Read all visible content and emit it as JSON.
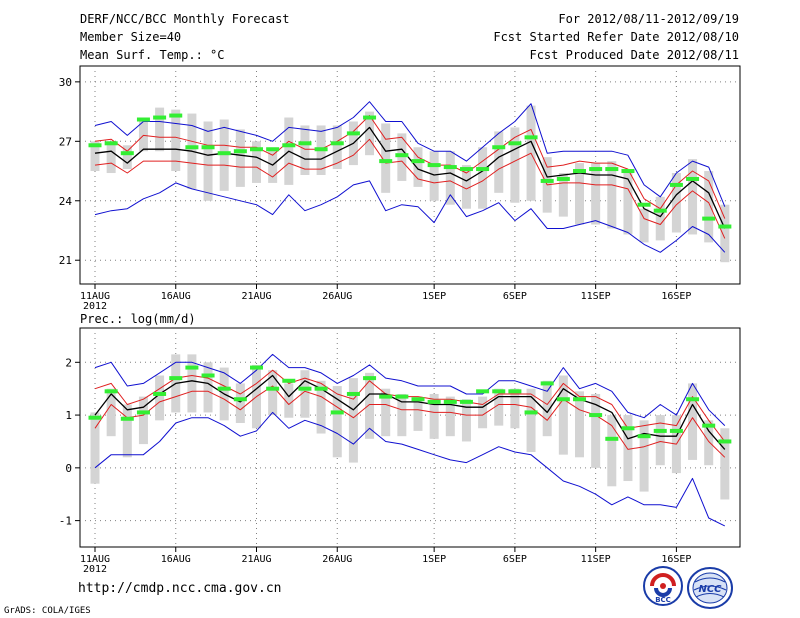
{
  "header": {
    "title": "DERF/NCC/BCC Monthly Forecast",
    "member_size": "Member Size=40",
    "variable": "Mean Surf. Temp.: °C",
    "period": "For 2012/08/11-2012/09/19",
    "started": "Fcst Started Refer Date 2012/08/10",
    "produced": "Fcst Produced Date 2012/08/11"
  },
  "footer": {
    "url": "http://cmdp.ncc.cma.gov.cn",
    "credit": "GrADS: COLA/IGES",
    "logo_bcc": "BCC",
    "logo_ncc": "NCC"
  },
  "colors": {
    "observed_green": "#33ee33",
    "box_gray": "#d4d4d4",
    "mean_black": "#000000",
    "inner_red": "#e02020",
    "outer_blue": "#1010d0",
    "grid": "#808080"
  },
  "chart_data": [
    {
      "type": "line",
      "title": "Mean Surf. Temp.: °C",
      "ylim": [
        19.8,
        30.8
      ],
      "yticks": [
        21,
        24,
        27,
        30
      ],
      "ytick_labels": [
        "21",
        "24",
        "27",
        "30"
      ],
      "xtick_days": [
        0,
        5,
        10,
        15,
        21,
        26,
        31,
        36
      ],
      "xtick_labels": [
        "11AUG",
        "16AUG",
        "21AUG",
        "26AUG",
        "1SEP",
        "6SEP",
        "11SEP",
        "16SEP"
      ],
      "year_label": "2012",
      "grid": true,
      "days": [
        0,
        1,
        2,
        3,
        4,
        5,
        6,
        7,
        8,
        9,
        10,
        11,
        12,
        13,
        14,
        15,
        16,
        17,
        18,
        19,
        20,
        21,
        22,
        23,
        24,
        25,
        26,
        27,
        28,
        29,
        30,
        31,
        32,
        33,
        34,
        35,
        36,
        37,
        38,
        39
      ],
      "series": [
        {
          "name": "max",
          "values": [
            27.8,
            28.0,
            27.3,
            28.0,
            28.0,
            27.9,
            27.8,
            27.5,
            27.7,
            27.5,
            27.3,
            27.0,
            27.7,
            27.6,
            27.5,
            27.7,
            28.2,
            29.0,
            28.0,
            28.0,
            26.9,
            26.5,
            26.5,
            26.0,
            26.7,
            27.4,
            28.0,
            28.9,
            26.4,
            26.5,
            26.5,
            26.5,
            26.5,
            26.3,
            24.8,
            24.2,
            25.4,
            26.0,
            25.7,
            23.7
          ]
        },
        {
          "name": "upper",
          "values": [
            27.0,
            27.1,
            26.5,
            27.3,
            27.2,
            27.2,
            27.0,
            26.8,
            26.8,
            26.7,
            26.7,
            26.3,
            27.0,
            26.6,
            26.6,
            27.0,
            27.5,
            28.3,
            27.1,
            27.2,
            26.2,
            25.8,
            25.8,
            25.4,
            26.0,
            26.6,
            27.2,
            27.6,
            25.7,
            25.8,
            26.0,
            25.9,
            25.9,
            25.6,
            24.1,
            23.6,
            24.8,
            25.5,
            25.0,
            23.1
          ]
        },
        {
          "name": "mean",
          "values": [
            26.4,
            26.5,
            25.9,
            26.6,
            26.6,
            26.6,
            26.5,
            26.3,
            26.4,
            26.3,
            26.2,
            25.8,
            26.5,
            26.1,
            26.1,
            26.5,
            26.9,
            27.7,
            26.5,
            26.6,
            25.6,
            25.3,
            25.4,
            25.0,
            25.5,
            26.2,
            26.6,
            27.0,
            25.2,
            25.3,
            25.4,
            25.3,
            25.3,
            25.1,
            23.6,
            23.2,
            24.3,
            25.0,
            24.4,
            22.6
          ]
        },
        {
          "name": "lower",
          "values": [
            25.8,
            25.9,
            25.4,
            26.0,
            26.0,
            26.0,
            25.9,
            25.8,
            25.8,
            25.7,
            25.7,
            25.2,
            25.9,
            25.6,
            25.6,
            25.9,
            26.3,
            27.1,
            25.9,
            26.0,
            25.1,
            24.9,
            25.0,
            24.6,
            25.0,
            25.6,
            26.0,
            26.4,
            24.8,
            24.9,
            24.9,
            24.8,
            24.8,
            24.6,
            23.1,
            22.8,
            23.8,
            24.5,
            23.9,
            22.1
          ]
        },
        {
          "name": "min",
          "values": [
            23.3,
            23.5,
            23.6,
            24.1,
            24.4,
            24.9,
            24.6,
            24.4,
            24.2,
            24.0,
            23.8,
            23.3,
            24.3,
            23.5,
            23.8,
            24.2,
            24.8,
            25.0,
            23.5,
            23.8,
            23.7,
            22.9,
            24.3,
            23.2,
            23.5,
            23.9,
            23.0,
            23.6,
            22.6,
            22.6,
            22.8,
            23.0,
            22.7,
            22.4,
            21.8,
            21.4,
            22.0,
            22.7,
            22.3,
            21.4
          ]
        },
        {
          "name": "box_top",
          "values": [
            27.0,
            27.0,
            26.8,
            28.2,
            28.7,
            28.6,
            28.4,
            28.0,
            28.1,
            27.6,
            27.0,
            26.6,
            28.2,
            27.8,
            27.8,
            27.8,
            28.0,
            28.5,
            27.9,
            27.4,
            26.7,
            26.5,
            26.5,
            25.8,
            26.7,
            27.5,
            27.7,
            28.8,
            26.2,
            25.4,
            25.9,
            25.9,
            26.0,
            25.4,
            23.6,
            24.2,
            25.4,
            26.1,
            25.5,
            23.8
          ]
        },
        {
          "name": "box_bottom",
          "values": [
            25.5,
            25.4,
            25.6,
            26.5,
            26.5,
            25.5,
            24.6,
            24.0,
            24.5,
            24.7,
            24.9,
            24.9,
            24.8,
            25.3,
            25.3,
            25.6,
            25.8,
            26.3,
            24.4,
            25.0,
            24.7,
            24.0,
            23.8,
            23.6,
            23.6,
            24.4,
            23.9,
            24.0,
            23.4,
            23.2,
            22.8,
            22.8,
            22.6,
            22.3,
            21.9,
            22.0,
            22.4,
            22.3,
            21.9,
            20.9
          ]
        },
        {
          "name": "observed",
          "values": [
            26.8,
            26.9,
            26.4,
            28.1,
            28.2,
            28.3,
            26.7,
            26.7,
            26.4,
            26.5,
            26.6,
            26.6,
            26.8,
            26.9,
            26.6,
            26.9,
            27.4,
            28.2,
            26.0,
            26.3,
            26.0,
            25.8,
            25.7,
            25.6,
            25.6,
            26.7,
            26.9,
            27.2,
            25.0,
            25.1,
            25.5,
            25.6,
            25.6,
            25.5,
            23.8,
            23.5,
            24.8,
            25.1,
            23.1,
            22.7
          ]
        }
      ]
    },
    {
      "type": "line",
      "title": "Prec.: log(mm/d)",
      "ylim": [
        -1.5,
        2.65
      ],
      "yticks": [
        -1,
        0,
        1,
        2
      ],
      "ytick_labels": [
        "-1",
        "0",
        "1",
        "2"
      ],
      "xtick_days": [
        0,
        5,
        10,
        15,
        21,
        26,
        31,
        36
      ],
      "xtick_labels": [
        "11AUG",
        "16AUG",
        "21AUG",
        "26AUG",
        "1SEP",
        "6SEP",
        "11SEP",
        "16SEP"
      ],
      "year_label": "2012",
      "grid": true,
      "days": [
        0,
        1,
        2,
        3,
        4,
        5,
        6,
        7,
        8,
        9,
        10,
        11,
        12,
        13,
        14,
        15,
        16,
        17,
        18,
        19,
        20,
        21,
        22,
        23,
        24,
        25,
        26,
        27,
        28,
        29,
        30,
        31,
        32,
        33,
        34,
        35,
        36,
        37,
        38,
        39
      ],
      "series": [
        {
          "name": "max",
          "values": [
            1.9,
            2.0,
            1.55,
            1.6,
            1.8,
            2.0,
            2.0,
            1.9,
            1.8,
            1.6,
            1.85,
            2.15,
            1.9,
            1.9,
            1.8,
            1.6,
            1.75,
            1.95,
            1.7,
            1.65,
            1.55,
            1.55,
            1.55,
            1.4,
            1.4,
            1.65,
            1.65,
            1.55,
            1.45,
            1.9,
            1.5,
            1.6,
            1.45,
            1.05,
            0.95,
            1.2,
            1.0,
            1.6,
            1.1,
            0.8
          ]
        },
        {
          "name": "upper",
          "values": [
            1.5,
            1.6,
            1.2,
            1.3,
            1.5,
            1.7,
            1.75,
            1.7,
            1.55,
            1.4,
            1.6,
            1.85,
            1.6,
            1.7,
            1.6,
            1.4,
            1.3,
            1.65,
            1.4,
            1.35,
            1.35,
            1.3,
            1.3,
            1.25,
            1.2,
            1.4,
            1.4,
            1.4,
            1.2,
            1.6,
            1.35,
            1.35,
            1.2,
            0.75,
            0.8,
            0.85,
            0.8,
            1.35,
            0.9,
            0.5
          ]
        },
        {
          "name": "mean",
          "values": [
            1.0,
            1.4,
            1.1,
            1.15,
            1.4,
            1.6,
            1.65,
            1.6,
            1.4,
            1.25,
            1.5,
            1.75,
            1.35,
            1.65,
            1.5,
            1.3,
            1.1,
            1.4,
            1.4,
            1.25,
            1.25,
            1.2,
            1.2,
            1.15,
            1.15,
            1.35,
            1.35,
            1.35,
            1.05,
            1.5,
            1.3,
            1.2,
            1.05,
            0.55,
            0.65,
            0.6,
            0.6,
            1.2,
            0.7,
            0.35
          ]
        },
        {
          "name": "lower",
          "values": [
            0.75,
            1.2,
            0.95,
            1.0,
            1.25,
            1.35,
            1.45,
            1.45,
            1.3,
            1.1,
            1.35,
            1.55,
            1.2,
            1.45,
            1.35,
            1.15,
            0.95,
            1.2,
            1.2,
            1.1,
            1.1,
            1.05,
            1.05,
            1.0,
            1.0,
            1.2,
            1.2,
            1.15,
            0.9,
            1.3,
            1.1,
            1.0,
            0.8,
            0.35,
            0.4,
            0.5,
            0.45,
            0.95,
            0.5,
            0.2
          ]
        },
        {
          "name": "min",
          "values": [
            0.0,
            0.25,
            0.25,
            0.25,
            0.5,
            0.85,
            0.95,
            0.95,
            0.8,
            0.6,
            0.7,
            1.05,
            0.75,
            0.9,
            0.8,
            0.65,
            0.45,
            0.75,
            0.5,
            0.45,
            0.35,
            0.25,
            0.15,
            0.1,
            0.25,
            0.4,
            0.3,
            0.25,
            0.0,
            -0.25,
            -0.35,
            -0.5,
            -0.7,
            -0.55,
            -0.7,
            -0.7,
            -0.75,
            -0.2,
            -0.95,
            -1.1
          ]
        },
        {
          "name": "box_top",
          "values": [
            1.05,
            1.5,
            1.2,
            1.35,
            1.75,
            2.15,
            2.15,
            2.0,
            1.9,
            1.6,
            1.95,
            1.85,
            1.6,
            1.85,
            1.65,
            1.55,
            1.7,
            1.8,
            1.5,
            1.4,
            1.35,
            1.4,
            1.35,
            1.3,
            1.35,
            1.5,
            1.5,
            1.5,
            1.65,
            1.75,
            1.45,
            1.4,
            1.0,
            1.0,
            0.9,
            1.0,
            1.0,
            1.6,
            0.9,
            0.75
          ]
        },
        {
          "name": "box_bottom",
          "values": [
            -0.3,
            0.6,
            0.2,
            0.45,
            0.9,
            1.05,
            1.05,
            1.05,
            0.9,
            0.85,
            0.75,
            1.0,
            0.95,
            0.95,
            0.65,
            0.2,
            0.1,
            0.55,
            0.6,
            0.6,
            0.7,
            0.55,
            0.6,
            0.5,
            0.75,
            0.8,
            0.75,
            0.3,
            0.6,
            0.25,
            0.2,
            0.0,
            -0.35,
            -0.25,
            -0.45,
            0.05,
            -0.1,
            0.15,
            0.05,
            -0.6
          ]
        },
        {
          "name": "observed",
          "values": [
            0.95,
            1.45,
            0.93,
            1.05,
            1.4,
            1.7,
            1.9,
            1.75,
            1.5,
            1.3,
            1.9,
            1.5,
            1.65,
            1.5,
            1.5,
            1.05,
            1.4,
            1.7,
            1.35,
            1.35,
            1.3,
            1.25,
            1.25,
            1.25,
            1.45,
            1.45,
            1.45,
            1.05,
            1.6,
            1.3,
            1.3,
            1.0,
            0.55,
            0.75,
            0.6,
            0.7,
            0.7,
            1.3,
            0.8,
            0.5
          ]
        }
      ]
    }
  ]
}
